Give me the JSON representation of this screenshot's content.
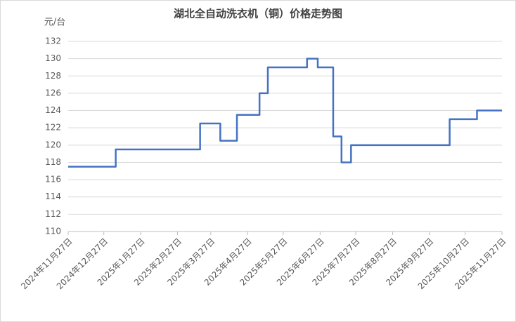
{
  "chart_data": {
    "type": "line",
    "title": "湖北全自动洗衣机（铜）价格走势图",
    "y_label": "元/台",
    "x": [
      "2024年11月27日",
      "2025年1月6日",
      "2025年1月6日",
      "2025年3月18日",
      "2025年3月18日",
      "2025年4月4日",
      "2025年4月4日",
      "2025年4月18日",
      "2025年4月18日",
      "2025年5月7日",
      "2025年5月7日",
      "2025年5月14日",
      "2025年5月14日",
      "2025年6月16日",
      "2025年6月16日",
      "2025年6月25日",
      "2025年6月25日",
      "2025年7月8日",
      "2025年7月8日",
      "2025年7月15日",
      "2025年7月15日",
      "2025年7月23日",
      "2025年7月23日",
      "2025年10月14日",
      "2025年10月14日",
      "2025年11月6日",
      "2025年11月6日",
      "2025年11月27日"
    ],
    "series": [
      {
        "color": "#4472c4",
        "values": [
          117.5,
          117.5,
          119.5,
          119.5,
          122.5,
          122.5,
          120.5,
          120.5,
          123.5,
          123.5,
          126,
          126,
          129,
          129,
          130,
          130,
          129,
          129,
          121,
          121,
          118,
          118,
          120,
          120,
          123,
          123,
          124,
          124
        ]
      }
    ],
    "xlim": [
      "2024年11月27日",
      "2025年11月27日"
    ],
    "xticks": [
      "2024年11月27日",
      "2024年12月27日",
      "2025年1月27日",
      "2025年2月27日",
      "2025年3月27日",
      "2025年4月27日",
      "2025年5月27日",
      "2025年6月27日",
      "2025年7月27日",
      "2025年8月27日",
      "2025年9月27日",
      "2025年10月27日",
      "2025年11月27日"
    ],
    "ylim": [
      110,
      132
    ],
    "yticks": [
      110,
      112,
      114,
      116,
      118,
      120,
      122,
      124,
      126,
      128,
      130,
      132
    ],
    "grid": true
  }
}
